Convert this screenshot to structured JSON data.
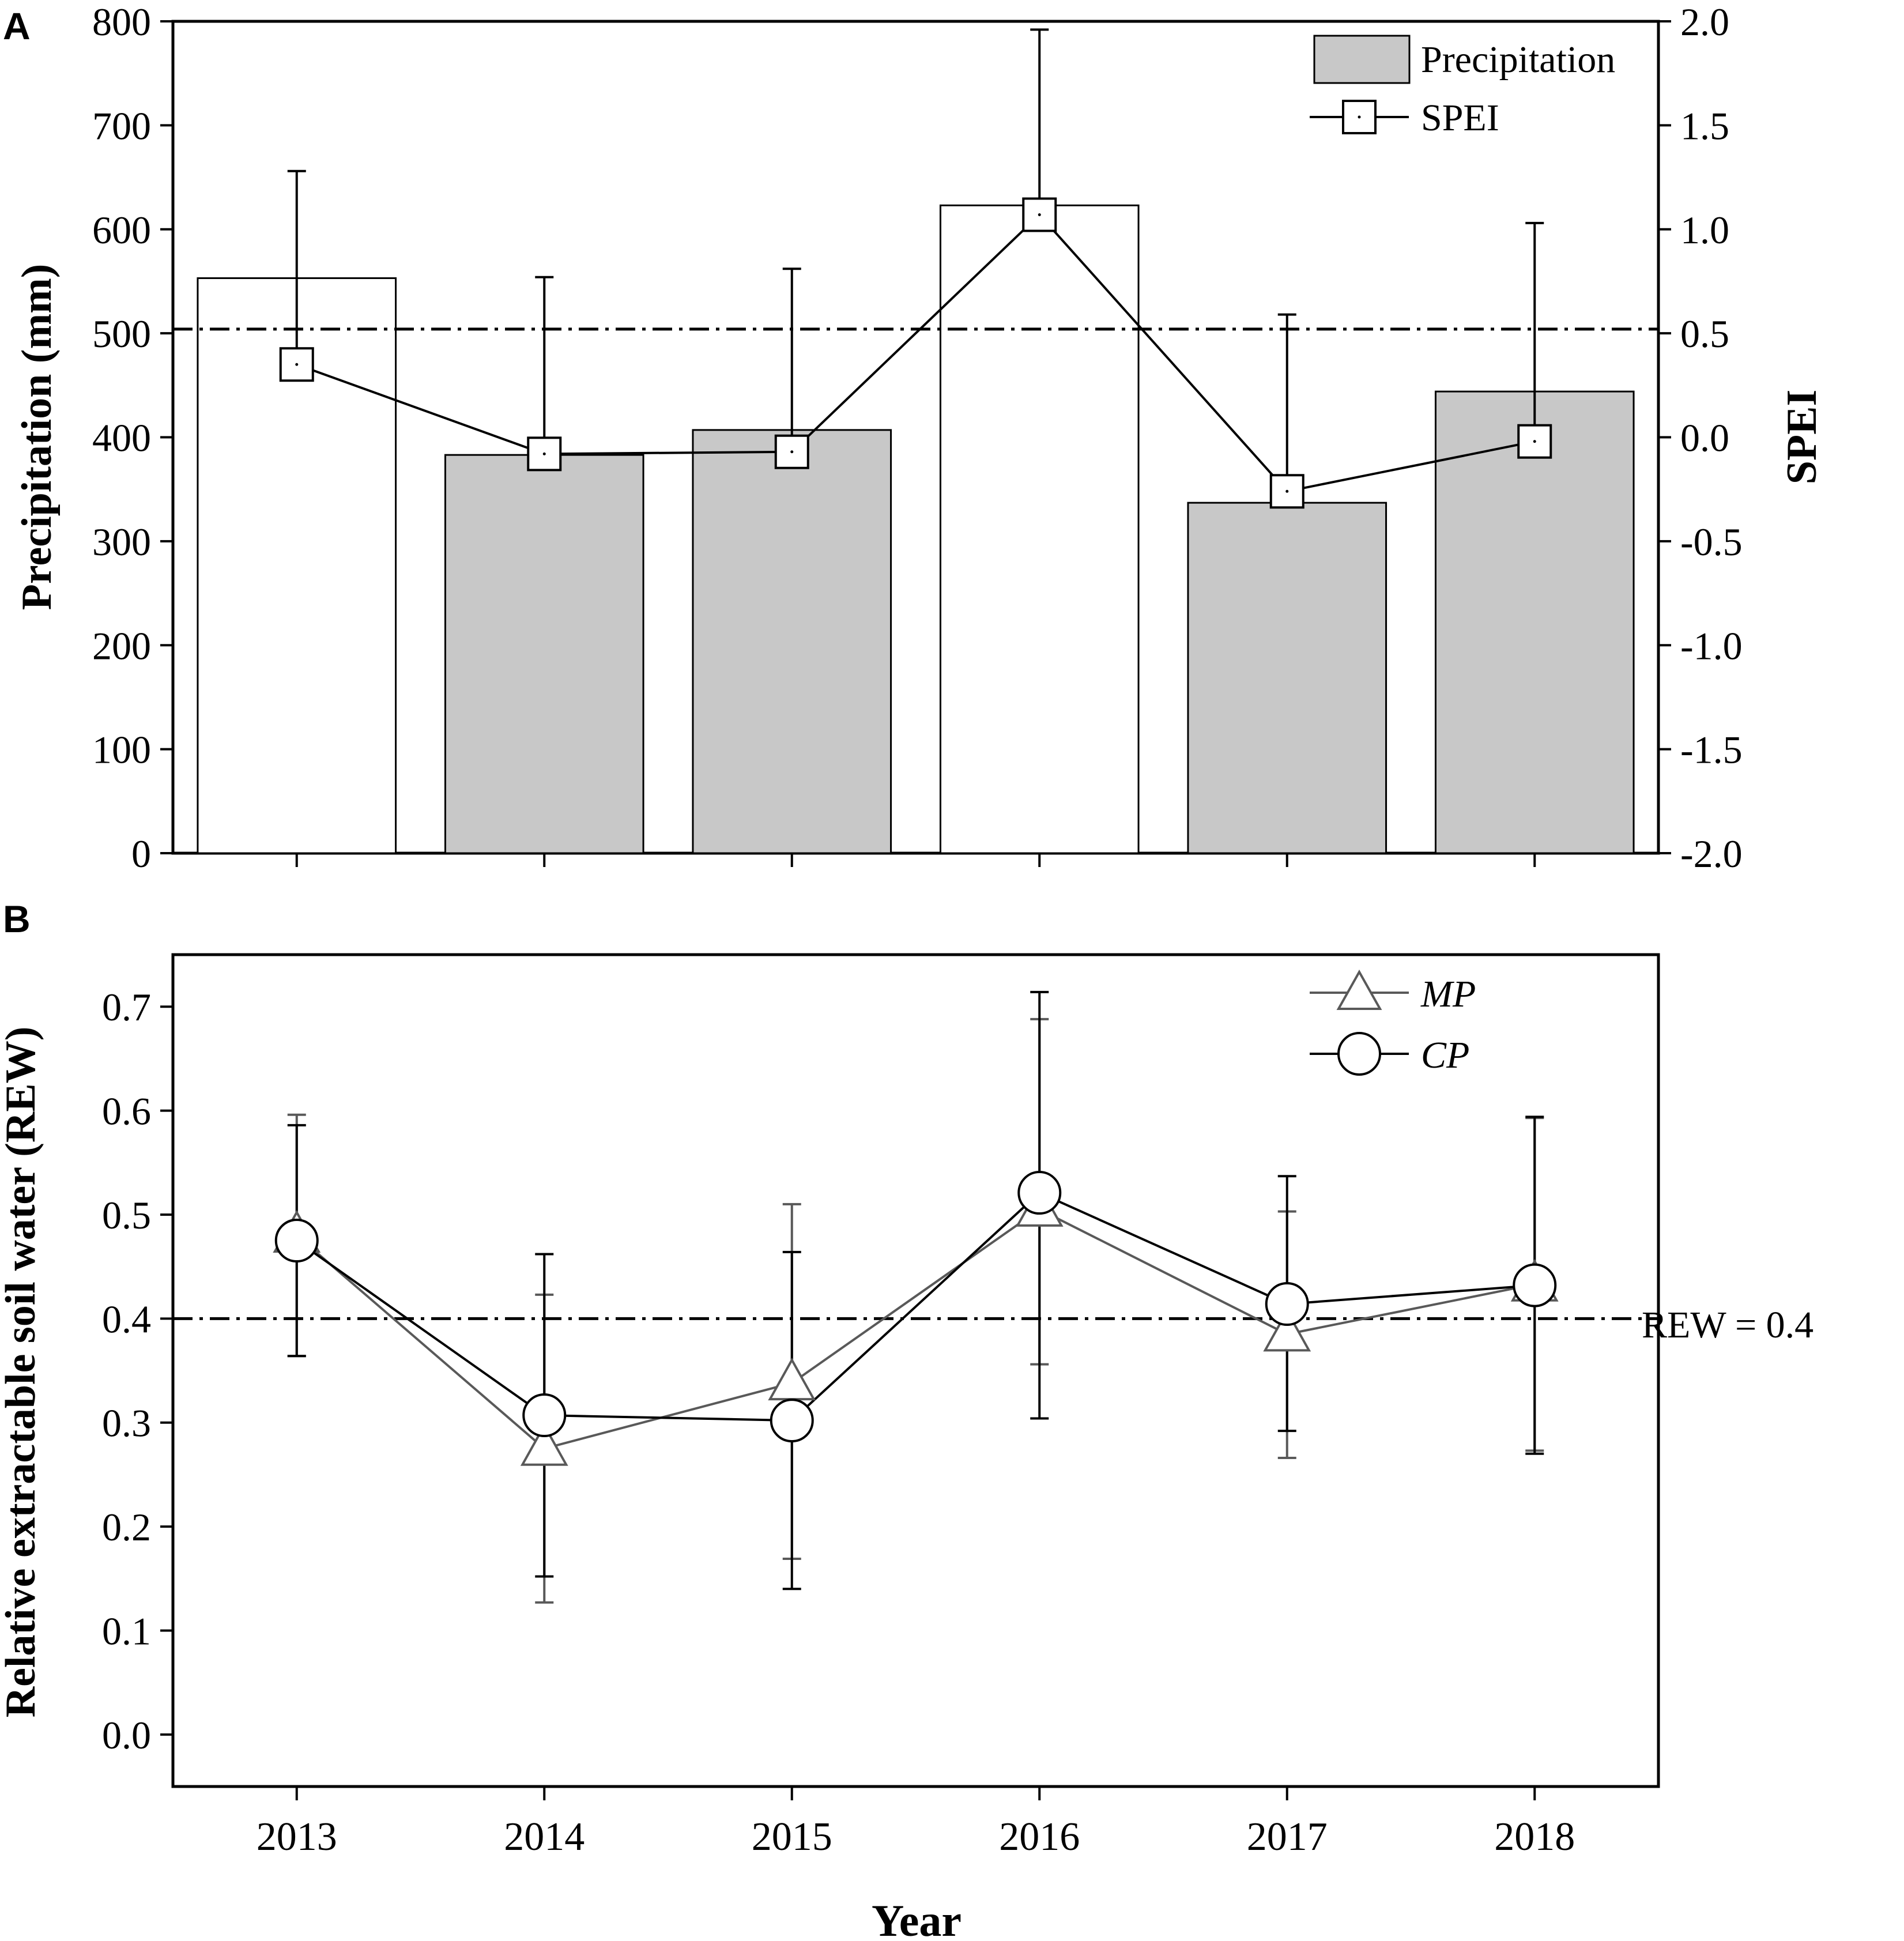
{
  "colors": {
    "axis": "#000000",
    "bar_gray": "#c8c8c8",
    "bar_white": "#ffffff",
    "mp_line": "#595959",
    "cp_line": "#000000"
  },
  "chart_data": [
    {
      "panel_label": "A",
      "type": "bar",
      "categories": [
        "2013",
        "2014",
        "2015",
        "2016",
        "2017",
        "2018"
      ],
      "series": [
        {
          "name": "Precipitation",
          "values": [
            553,
            383,
            407,
            623,
            337,
            444
          ],
          "fill": [
            "white",
            "gray",
            "gray",
            "white",
            "gray",
            "gray"
          ],
          "axis": "left"
        },
        {
          "name": "SPEI",
          "type": "line",
          "marker": "square",
          "values": [
            0.35,
            -0.08,
            -0.07,
            1.07,
            -0.26,
            -0.02
          ],
          "error_upper": [
            1.28,
            0.77,
            0.81,
            1.96,
            0.59,
            1.03
          ],
          "axis": "right"
        }
      ],
      "reference_line": {
        "axis": "right",
        "value": 0.52,
        "style": "dash-dot"
      },
      "ylabel": "Precipitation (mm)",
      "ylim": [
        0,
        800
      ],
      "y_ticks": [
        "0",
        "100",
        "200",
        "300",
        "400",
        "500",
        "600",
        "700",
        "800"
      ],
      "y2label": "SPEI",
      "y2lim": [
        -2.0,
        2.0
      ],
      "y2_ticks": [
        "-2.0",
        "-1.5",
        "-1.0",
        "-0.5",
        "0.0",
        "0.5",
        "1.0",
        "1.5",
        "2.0"
      ],
      "legend": {
        "placement": "top-right",
        "entries": [
          "Precipitation",
          "SPEI"
        ]
      }
    },
    {
      "panel_label": "B",
      "type": "line",
      "categories": [
        "2013",
        "2014",
        "2015",
        "2016",
        "2017",
        "2018"
      ],
      "series": [
        {
          "name": "MP",
          "marker": "triangle",
          "values": [
            0.48,
            0.275,
            0.338,
            0.505,
            0.385,
            0.433
          ],
          "error_upper": [
            0.596,
            0.423,
            0.51,
            0.688,
            0.503,
            0.593
          ],
          "error_lower": [
            0.364,
            0.127,
            0.169,
            0.356,
            0.266,
            0.273
          ]
        },
        {
          "name": "CP",
          "marker": "circle",
          "values": [
            0.475,
            0.307,
            0.302,
            0.521,
            0.414,
            0.432
          ],
          "error_upper": [
            0.586,
            0.462,
            0.464,
            0.714,
            0.537,
            0.594
          ],
          "error_lower": [
            0.364,
            0.152,
            0.14,
            0.304,
            0.292,
            0.27
          ]
        }
      ],
      "reference_line": {
        "value": 0.4,
        "label": "REW = 0.4",
        "style": "dash-dot"
      },
      "xlabel": "Year",
      "ylabel": "Relative extractable soil water (REW)",
      "ylim": [
        -0.05,
        0.75
      ],
      "y_ticks": [
        "0.0",
        "0.1",
        "0.2",
        "0.3",
        "0.4",
        "0.5",
        "0.6",
        "0.7"
      ],
      "legend": {
        "placement": "top-right",
        "entries": [
          "MP",
          "CP"
        ]
      }
    }
  ]
}
